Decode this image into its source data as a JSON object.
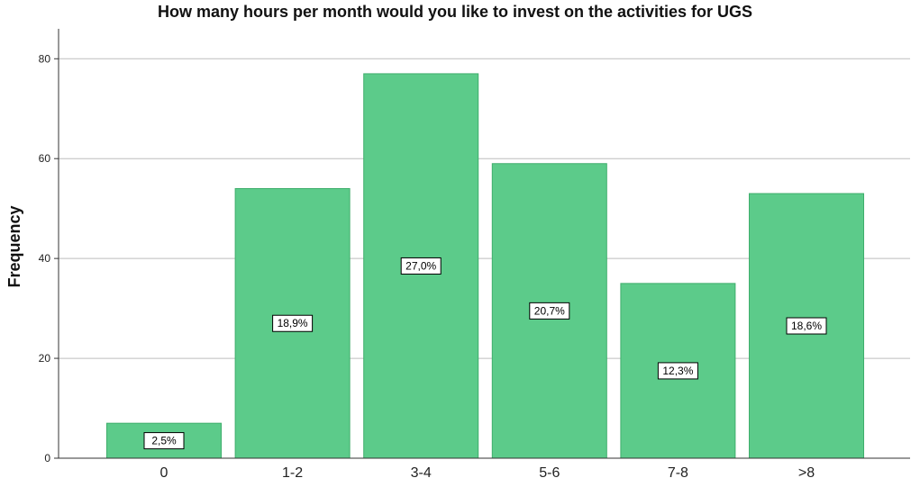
{
  "chart_data": {
    "type": "bar",
    "title": "How many hours per month would you like to invest on the activities for UGS",
    "xlabel": "",
    "ylabel": "Frequency",
    "categories": [
      "0",
      "1-2",
      "3-4",
      "5-6",
      "7-8",
      ">8"
    ],
    "values": [
      7,
      54,
      77,
      59,
      35,
      53
    ],
    "data_labels": [
      "2,5%",
      "18,9%",
      "27,0%",
      "20,7%",
      "12,3%",
      "18,6%"
    ],
    "ylim": [
      0,
      86
    ],
    "yticks": [
      0,
      20,
      40,
      60,
      80
    ],
    "grid": true,
    "bar_color": "#5ccb8a",
    "bar_edge_color": "#3fae6c"
  }
}
